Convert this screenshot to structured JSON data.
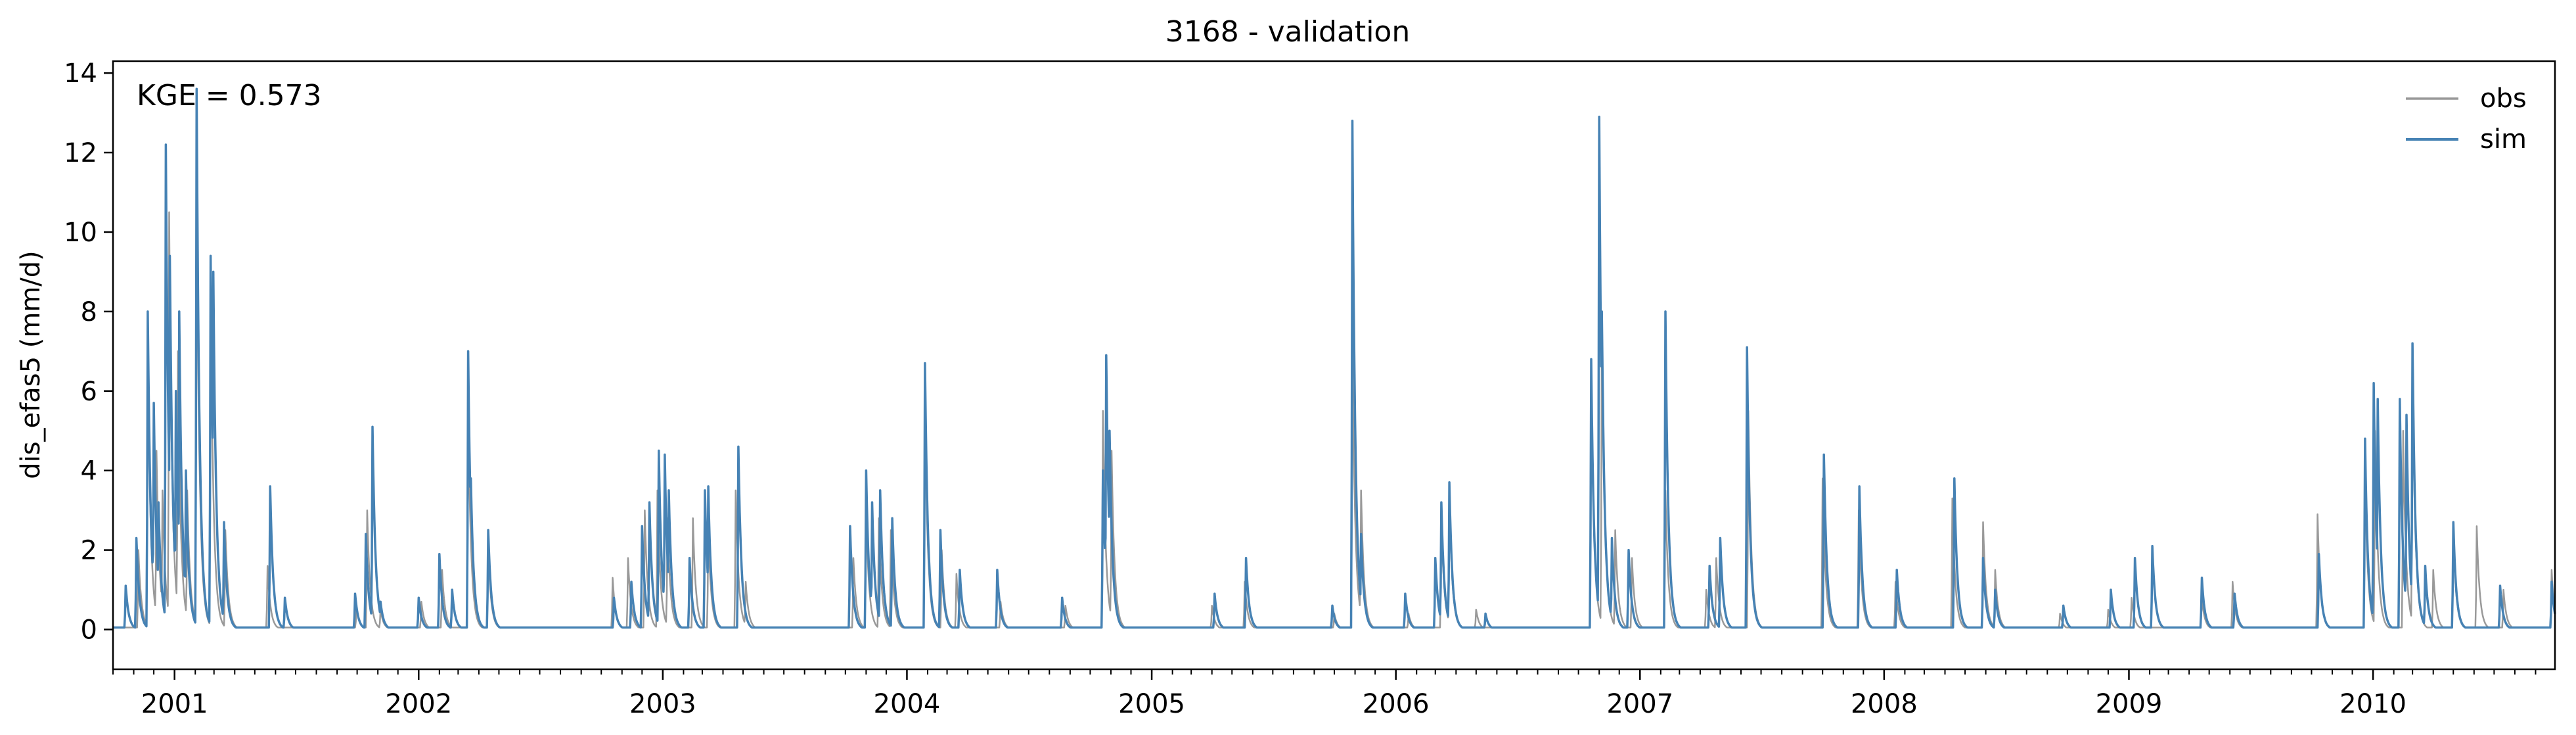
{
  "chart_data": {
    "type": "line",
    "title": "3168 - validation",
    "xlabel": "",
    "ylabel": "dis_efas5 (mm/d)",
    "annotation": "KGE = 0.573",
    "ylim": [
      -1,
      14.3
    ],
    "yticks": [
      0,
      2,
      4,
      6,
      8,
      10,
      12,
      14
    ],
    "xlim": [
      "2000-10-01",
      "2010-09-30"
    ],
    "xticks": [
      {
        "date": "2001-01-01",
        "label": "2001"
      },
      {
        "date": "2002-01-01",
        "label": "2002"
      },
      {
        "date": "2003-01-01",
        "label": "2003"
      },
      {
        "date": "2004-01-01",
        "label": "2004"
      },
      {
        "date": "2005-01-01",
        "label": "2005"
      },
      {
        "date": "2006-01-01",
        "label": "2006"
      },
      {
        "date": "2007-01-01",
        "label": "2007"
      },
      {
        "date": "2008-01-01",
        "label": "2008"
      },
      {
        "date": "2009-01-01",
        "label": "2009"
      },
      {
        "date": "2010-01-01",
        "label": "2010"
      }
    ],
    "minor_ticks": "monthly",
    "grid": false,
    "legend": "top-right",
    "baseflow": 0.05,
    "series": [
      {
        "name": "obs",
        "color": "#999999",
        "peaks": [
          [
            "2000-11-08",
            2.0
          ],
          [
            "2000-11-22",
            7.0
          ],
          [
            "2000-12-05",
            4.5
          ],
          [
            "2000-12-14",
            3.5
          ],
          [
            "2000-12-24",
            10.5
          ],
          [
            "2001-01-06",
            7.0
          ],
          [
            "2001-01-20",
            3.5
          ],
          [
            "2001-02-03",
            11.0
          ],
          [
            "2001-02-24",
            8.5
          ],
          [
            "2001-03-18",
            2.5
          ],
          [
            "2001-05-20",
            1.6
          ],
          [
            "2001-09-30",
            0.6
          ],
          [
            "2001-10-16",
            3.0
          ],
          [
            "2001-11-05",
            0.5
          ],
          [
            "2002-01-05",
            0.7
          ],
          [
            "2002-02-05",
            1.5
          ],
          [
            "2002-03-16",
            5.5
          ],
          [
            "2002-04-15",
            2.0
          ],
          [
            "2002-10-18",
            1.3
          ],
          [
            "2002-11-10",
            1.8
          ],
          [
            "2002-12-05",
            3.0
          ],
          [
            "2002-12-24",
            3.5
          ],
          [
            "2003-01-08",
            2.8
          ],
          [
            "2003-02-15",
            2.8
          ],
          [
            "2003-03-10",
            2.5
          ],
          [
            "2003-04-20",
            3.5
          ],
          [
            "2003-05-05",
            1.2
          ],
          [
            "2003-10-13",
            1.8
          ],
          [
            "2003-11-01",
            3.0
          ],
          [
            "2003-11-20",
            2.8
          ],
          [
            "2003-12-08",
            2.5
          ],
          [
            "2004-01-28",
            5.5
          ],
          [
            "2004-02-22",
            2.0
          ],
          [
            "2004-03-15",
            1.4
          ],
          [
            "2004-05-20",
            0.7
          ],
          [
            "2004-08-25",
            0.6
          ],
          [
            "2004-10-20",
            5.5
          ],
          [
            "2004-11-02",
            4.5
          ],
          [
            "2005-04-01",
            0.6
          ],
          [
            "2005-05-20",
            1.2
          ],
          [
            "2005-10-01",
            0.4
          ],
          [
            "2005-10-28",
            7.0
          ],
          [
            "2005-11-10",
            3.5
          ],
          [
            "2006-01-20",
            0.4
          ],
          [
            "2006-03-10",
            2.8
          ],
          [
            "2006-03-22",
            3.3
          ],
          [
            "2006-05-01",
            0.5
          ],
          [
            "2006-10-20",
            6.5
          ],
          [
            "2006-11-05",
            8.0
          ],
          [
            "2006-11-25",
            2.5
          ],
          [
            "2006-12-20",
            1.8
          ],
          [
            "2007-02-08",
            3.5
          ],
          [
            "2007-04-10",
            1.0
          ],
          [
            "2007-04-25",
            1.8
          ],
          [
            "2007-06-12",
            5.5
          ],
          [
            "2007-10-01",
            3.8
          ],
          [
            "2007-11-24",
            3.0
          ],
          [
            "2008-01-18",
            1.2
          ],
          [
            "2008-04-12",
            3.3
          ],
          [
            "2008-05-28",
            2.7
          ],
          [
            "2008-06-15",
            1.5
          ],
          [
            "2008-09-20",
            0.4
          ],
          [
            "2008-12-01",
            0.5
          ],
          [
            "2009-01-05",
            0.8
          ],
          [
            "2009-04-20",
            0.8
          ],
          [
            "2009-06-05",
            1.2
          ],
          [
            "2009-10-10",
            2.9
          ],
          [
            "2009-12-20",
            3.8
          ],
          [
            "2010-01-04",
            5.0
          ],
          [
            "2010-02-15",
            5.0
          ],
          [
            "2010-03-01",
            6.5
          ],
          [
            "2010-04-01",
            1.5
          ],
          [
            "2010-05-01",
            2.4
          ],
          [
            "2010-06-05",
            2.6
          ],
          [
            "2010-07-15",
            1.0
          ],
          [
            "2010-09-25",
            1.5
          ]
        ]
      },
      {
        "name": "sim",
        "color": "#4682b4",
        "peaks": [
          [
            "2000-10-20",
            1.1
          ],
          [
            "2000-11-05",
            2.3
          ],
          [
            "2000-11-22",
            8.0
          ],
          [
            "2000-12-01",
            5.7
          ],
          [
            "2000-12-08",
            3.2
          ],
          [
            "2000-12-19",
            12.2
          ],
          [
            "2000-12-25",
            9.4
          ],
          [
            "2001-01-03",
            6.0
          ],
          [
            "2001-01-08",
            8.0
          ],
          [
            "2001-01-18",
            4.0
          ],
          [
            "2001-02-03",
            13.6
          ],
          [
            "2001-02-24",
            9.4
          ],
          [
            "2001-02-28",
            9.0
          ],
          [
            "2001-03-16",
            2.7
          ],
          [
            "2001-05-24",
            3.6
          ],
          [
            "2001-06-15",
            0.8
          ],
          [
            "2001-09-28",
            0.9
          ],
          [
            "2001-10-14",
            2.4
          ],
          [
            "2001-10-24",
            5.1
          ],
          [
            "2001-11-05",
            0.7
          ],
          [
            "2002-01-01",
            0.8
          ],
          [
            "2002-02-01",
            1.9
          ],
          [
            "2002-02-20",
            1.0
          ],
          [
            "2002-03-16",
            7.0
          ],
          [
            "2002-03-20",
            3.8
          ],
          [
            "2002-04-15",
            2.5
          ],
          [
            "2002-10-20",
            0.8
          ],
          [
            "2002-11-15",
            1.2
          ],
          [
            "2002-12-01",
            2.6
          ],
          [
            "2002-12-12",
            3.2
          ],
          [
            "2002-12-26",
            4.5
          ],
          [
            "2003-01-04",
            4.4
          ],
          [
            "2003-01-10",
            3.5
          ],
          [
            "2003-02-10",
            1.8
          ],
          [
            "2003-03-05",
            3.5
          ],
          [
            "2003-03-10",
            3.6
          ],
          [
            "2003-04-24",
            4.6
          ],
          [
            "2003-10-08",
            2.6
          ],
          [
            "2003-11-01",
            4.0
          ],
          [
            "2003-11-10",
            3.2
          ],
          [
            "2003-11-22",
            3.5
          ],
          [
            "2003-12-10",
            2.8
          ],
          [
            "2004-01-28",
            6.7
          ],
          [
            "2004-02-20",
            2.5
          ],
          [
            "2004-03-20",
            1.5
          ],
          [
            "2004-05-15",
            1.5
          ],
          [
            "2004-08-20",
            0.8
          ],
          [
            "2004-10-20",
            4.0
          ],
          [
            "2004-10-25",
            6.9
          ],
          [
            "2004-10-30",
            5.0
          ],
          [
            "2005-04-05",
            0.9
          ],
          [
            "2005-05-22",
            1.8
          ],
          [
            "2005-09-28",
            0.6
          ],
          [
            "2005-10-28",
            12.8
          ],
          [
            "2005-11-10",
            2.4
          ],
          [
            "2006-01-15",
            0.9
          ],
          [
            "2006-03-01",
            1.8
          ],
          [
            "2006-03-10",
            3.2
          ],
          [
            "2006-03-22",
            3.7
          ],
          [
            "2006-05-15",
            0.4
          ],
          [
            "2006-10-20",
            6.8
          ],
          [
            "2006-11-01",
            12.9
          ],
          [
            "2006-11-05",
            8.0
          ],
          [
            "2006-11-20",
            2.3
          ],
          [
            "2006-12-15",
            2.0
          ],
          [
            "2007-02-08",
            8.0
          ],
          [
            "2007-04-15",
            1.6
          ],
          [
            "2007-05-01",
            2.3
          ],
          [
            "2007-06-10",
            7.1
          ],
          [
            "2007-10-03",
            4.4
          ],
          [
            "2007-11-25",
            3.6
          ],
          [
            "2008-01-20",
            1.5
          ],
          [
            "2008-04-15",
            3.8
          ],
          [
            "2008-05-28",
            1.8
          ],
          [
            "2008-06-15",
            1.0
          ],
          [
            "2008-09-25",
            0.6
          ],
          [
            "2008-12-05",
            1.0
          ],
          [
            "2009-01-10",
            1.8
          ],
          [
            "2009-02-05",
            2.1
          ],
          [
            "2009-04-20",
            1.3
          ],
          [
            "2009-06-08",
            0.9
          ],
          [
            "2009-10-12",
            1.9
          ],
          [
            "2009-12-20",
            4.8
          ],
          [
            "2010-01-02",
            6.2
          ],
          [
            "2010-01-08",
            5.8
          ],
          [
            "2010-02-10",
            5.8
          ],
          [
            "2010-02-20",
            5.4
          ],
          [
            "2010-03-01",
            7.2
          ],
          [
            "2010-03-20",
            1.6
          ],
          [
            "2010-05-01",
            2.7
          ],
          [
            "2010-07-10",
            1.1
          ],
          [
            "2010-09-25",
            1.2
          ]
        ]
      }
    ]
  }
}
